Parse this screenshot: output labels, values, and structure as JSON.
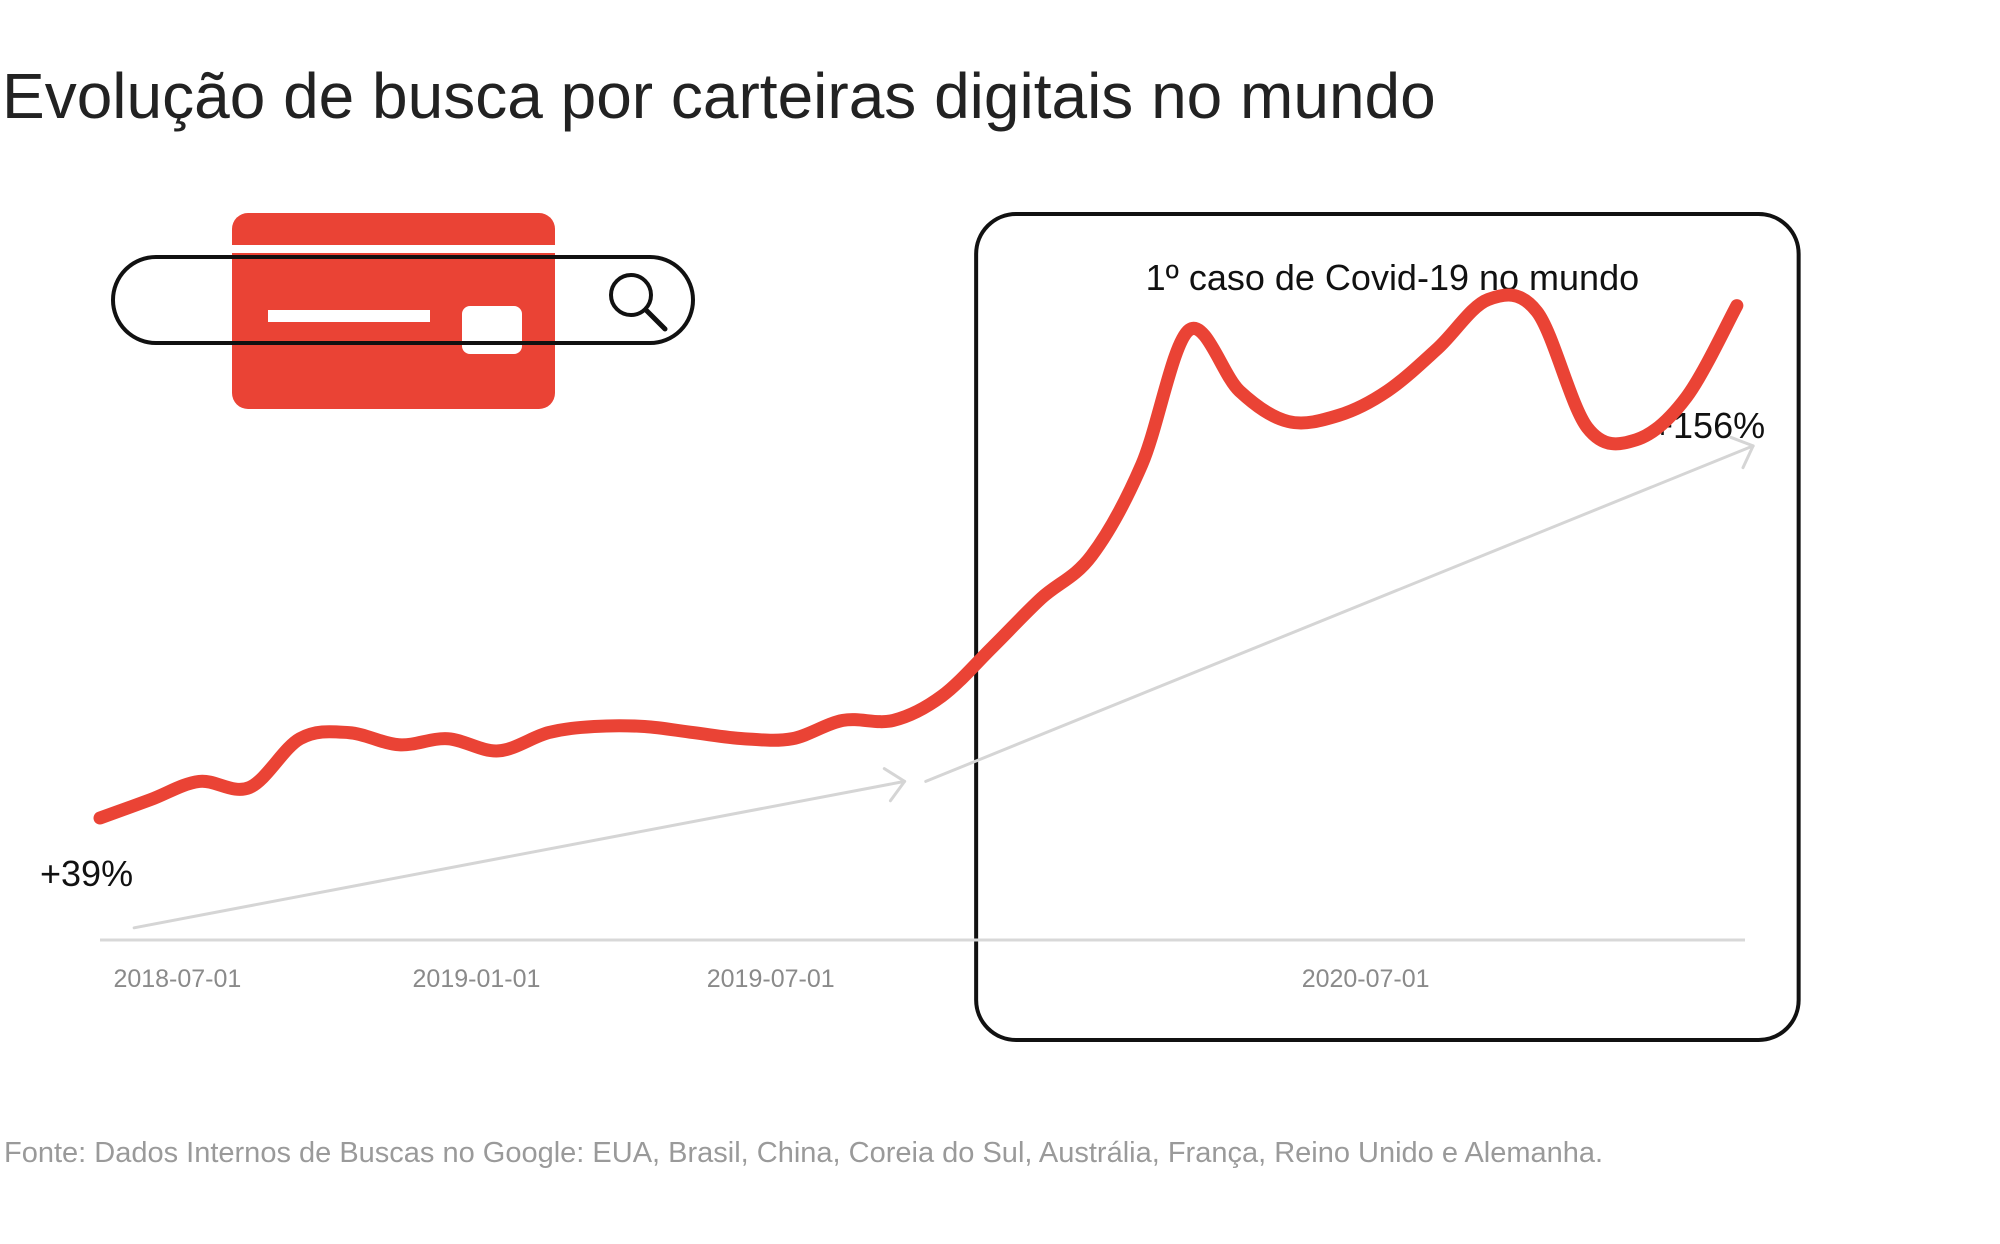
{
  "title": "Evolução de busca por carteiras digitais no mundo",
  "source": "Fonte: Dados Internos de Buscas no Google: EUA, Brasil, China, Coreia do Sul, Austrália, França, Reino Unido e Alemanha.",
  "colors": {
    "series": "#ea4335",
    "trend": "#d5d5d5",
    "axis": "#d8d8d8",
    "box": "#111111",
    "icon": "#ea4335"
  },
  "icons": [
    "credit-card-icon",
    "search-bar-icon",
    "magnifier-icon"
  ],
  "chart_data": {
    "type": "line",
    "title": "Evolução de busca por carteiras digitais no mundo",
    "xlabel": "",
    "ylabel": "",
    "x_ticks": [
      "2018-07-01",
      "2019-01-01",
      "2019-07-01",
      "2020-07-01"
    ],
    "xlim": [
      "2018-05-15",
      "2021-02-20"
    ],
    "ylim": [
      0,
      100
    ],
    "grid": false,
    "x": [
      "2018-05-15",
      "2018-06-15",
      "2018-07-15",
      "2018-08-15",
      "2018-09-15",
      "2018-10-15",
      "2018-11-15",
      "2018-12-15",
      "2019-01-15",
      "2019-02-15",
      "2019-03-15",
      "2019-04-15",
      "2019-05-15",
      "2019-06-15",
      "2019-07-15",
      "2019-08-15",
      "2019-09-15",
      "2019-10-15",
      "2019-11-15",
      "2019-12-15",
      "2020-01-15",
      "2020-02-15",
      "2020-03-15",
      "2020-04-15",
      "2020-05-15",
      "2020-06-15",
      "2020-07-15",
      "2020-08-15",
      "2020-09-15",
      "2020-10-15",
      "2020-11-15",
      "2020-12-15",
      "2021-01-15",
      "2021-02-15"
    ],
    "series": [
      {
        "values": [
          20,
          23,
          26,
          25,
          33,
          34,
          32,
          33,
          31,
          34,
          35,
          35,
          34,
          33,
          33,
          36,
          36,
          40,
          48,
          56,
          63,
          78,
          100,
          90,
          85,
          86,
          90,
          97,
          105,
          103,
          84,
          82,
          89,
          104
        ]
      }
    ],
    "trend_lines": [
      {
        "label": "+39%",
        "from": [
          "2018-06-05",
          2
        ],
        "to": [
          "2019-09-22",
          26
        ]
      },
      {
        "label": "+156%",
        "from": [
          "2019-10-05",
          26
        ],
        "to": [
          "2021-02-25",
          81
        ]
      }
    ],
    "highlight_region": {
      "label": "1º caso de Covid-19 no mundo",
      "x_from": "2019-11-05",
      "x_to": "2021-03-25"
    }
  }
}
